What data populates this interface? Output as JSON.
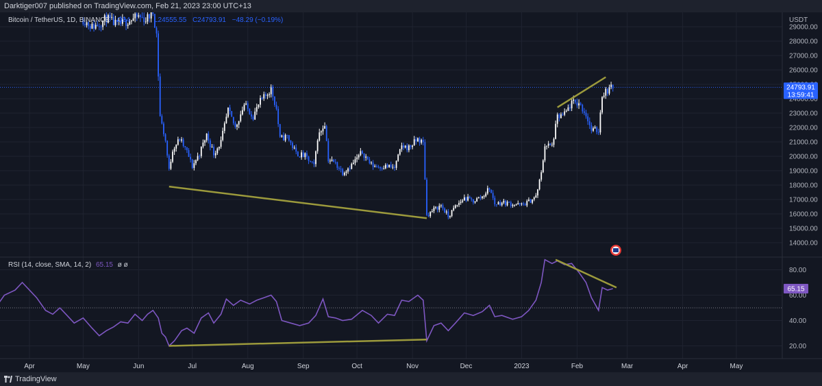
{
  "header": {
    "published": "Darktiger007 published on TradingView.com, Feb 21, 2023 23:00 UTC+13"
  },
  "footer": {
    "brand": "TradingView",
    "logo_icon": "tradingview-logo-icon"
  },
  "colors": {
    "bg": "#131722",
    "grid": "#1f2330",
    "up": "#ffffff",
    "down": "#2962ff",
    "trendline": "#9c9a3c",
    "rsi": "#7e57c2",
    "price_tag": "#2962ff",
    "rsi_tag": "#7e57c2",
    "axis_text": "#b2b5be"
  },
  "chart_data": [
    {
      "type": "candlestick",
      "symbol": "Bitcoin / TetherUS, 1D, BINANCE",
      "ohlc_label": "O24",
      "low_label": "L24555.55",
      "close_label": "C24793.91",
      "change_label": "−48.29 (−0.19%)",
      "currency": "USDT",
      "ylim": [
        13000,
        30000
      ],
      "y_ticks": [
        14000,
        15000,
        16000,
        17000,
        18000,
        19000,
        20000,
        21000,
        22000,
        23000,
        24000,
        25000,
        26000,
        27000,
        28000,
        29000
      ],
      "y_tick_labels": [
        "14000.00",
        "15000.00",
        "16000.00",
        "17000.00",
        "18000.00",
        "19000.00",
        "20000.00",
        "21000.00",
        "22000.00",
        "23000.00",
        "24000.00",
        "25000.00",
        "26000.00",
        "27000.00",
        "28000.00",
        "29000.00"
      ],
      "x_ticks": [
        "2022-04-01",
        "2022-05-01",
        "2022-06-01",
        "2022-07-01",
        "2022-08-01",
        "2022-09-01",
        "2022-10-01",
        "2022-11-01",
        "2022-12-01",
        "2023-01-01",
        "2023-02-01",
        "2023-03-01",
        "2023-04-01",
        "2023-05-01"
      ],
      "x_tick_labels": [
        "Apr",
        "May",
        "Jun",
        "Jul",
        "Aug",
        "Sep",
        "Oct",
        "Nov",
        "Dec",
        "2023",
        "Feb",
        "Mar",
        "Apr",
        "May"
      ],
      "last_price": 24793.91,
      "last_price_label": "24793.91",
      "countdown_label": "13:59:41",
      "close_series": [
        [
          "2022-05-01",
          29500
        ],
        [
          "2022-05-06",
          29000
        ],
        [
          "2022-05-10",
          29200
        ],
        [
          "2022-05-14",
          29600
        ],
        [
          "2022-05-20",
          29100
        ],
        [
          "2022-05-26",
          29400
        ],
        [
          "2022-06-01",
          29700
        ],
        [
          "2022-06-05",
          29500
        ],
        [
          "2022-06-09",
          30000
        ],
        [
          "2022-06-11",
          28500
        ],
        [
          "2022-06-13",
          22800
        ],
        [
          "2022-06-14",
          22200
        ],
        [
          "2022-06-16",
          21100
        ],
        [
          "2022-06-18",
          19000
        ],
        [
          "2022-06-20",
          20500
        ],
        [
          "2022-06-24",
          21200
        ],
        [
          "2022-06-28",
          20300
        ],
        [
          "2022-07-01",
          19300
        ],
        [
          "2022-07-05",
          20200
        ],
        [
          "2022-07-09",
          21500
        ],
        [
          "2022-07-13",
          20200
        ],
        [
          "2022-07-17",
          21000
        ],
        [
          "2022-07-21",
          23200
        ],
        [
          "2022-07-25",
          22000
        ],
        [
          "2022-07-30",
          23600
        ],
        [
          "2022-08-04",
          22800
        ],
        [
          "2022-08-08",
          23800
        ],
        [
          "2022-08-11",
          24200
        ],
        [
          "2022-08-14",
          24700
        ],
        [
          "2022-08-17",
          23300
        ],
        [
          "2022-08-19",
          21200
        ],
        [
          "2022-08-23",
          21400
        ],
        [
          "2022-08-28",
          20200
        ],
        [
          "2022-09-02",
          20000
        ],
        [
          "2022-09-07",
          19300
        ],
        [
          "2022-09-09",
          21300
        ],
        [
          "2022-09-13",
          22300
        ],
        [
          "2022-09-15",
          19800
        ],
        [
          "2022-09-19",
          19500
        ],
        [
          "2022-09-23",
          18900
        ],
        [
          "2022-09-28",
          19400
        ],
        [
          "2022-10-04",
          20300
        ],
        [
          "2022-10-09",
          19400
        ],
        [
          "2022-10-13",
          19300
        ],
        [
          "2022-10-18",
          19300
        ],
        [
          "2022-10-22",
          19200
        ],
        [
          "2022-10-26",
          20700
        ],
        [
          "2022-10-30",
          20600
        ],
        [
          "2022-11-04",
          21200
        ],
        [
          "2022-11-07",
          20900
        ],
        [
          "2022-11-08",
          18500
        ],
        [
          "2022-11-09",
          15900
        ],
        [
          "2022-11-13",
          16300
        ],
        [
          "2022-11-17",
          16600
        ],
        [
          "2022-11-21",
          15800
        ],
        [
          "2022-11-25",
          16500
        ],
        [
          "2022-11-30",
          17100
        ],
        [
          "2022-12-05",
          16900
        ],
        [
          "2022-12-10",
          17200
        ],
        [
          "2022-12-14",
          17800
        ],
        [
          "2022-12-17",
          16700
        ],
        [
          "2022-12-21",
          16800
        ],
        [
          "2022-12-27",
          16700
        ],
        [
          "2023-01-01",
          16600
        ],
        [
          "2023-01-05",
          16850
        ],
        [
          "2023-01-09",
          17200
        ],
        [
          "2023-01-12",
          18800
        ],
        [
          "2023-01-14",
          20800
        ],
        [
          "2023-01-18",
          20700
        ],
        [
          "2023-01-21",
          22700
        ],
        [
          "2023-01-25",
          22900
        ],
        [
          "2023-01-29",
          23700
        ],
        [
          "2023-02-02",
          23700
        ],
        [
          "2023-02-06",
          22900
        ],
        [
          "2023-02-09",
          21800
        ],
        [
          "2023-02-13",
          21800
        ],
        [
          "2023-02-15",
          24300
        ],
        [
          "2023-02-18",
          24600
        ],
        [
          "2023-02-21",
          24800
        ]
      ],
      "trendlines": [
        {
          "from": [
            "2022-06-18",
            17900
          ],
          "to": [
            "2022-11-09",
            15700
          ]
        },
        {
          "from": [
            "2023-01-21",
            23400
          ],
          "to": [
            "2023-02-17",
            25500
          ]
        }
      ],
      "currency_flag_icon": "us-flag-icon"
    },
    {
      "type": "line",
      "indicator_label": "RSI (14, close, SMA, 14, 2)",
      "value_label": "65.15",
      "extra_label": "ø ø",
      "ylim": [
        10,
        90
      ],
      "y_ticks": [
        20,
        40,
        60,
        80
      ],
      "y_tick_labels": [
        "20.00",
        "40.00",
        "60.00",
        "80.00"
      ],
      "reference_level": 50,
      "last_value": 65.15,
      "last_value_label": "65.15",
      "series": [
        [
          "2022-03-10",
          55
        ],
        [
          "2022-03-14",
          52
        ],
        [
          "2022-03-18",
          60
        ],
        [
          "2022-03-24",
          64
        ],
        [
          "2022-03-28",
          70
        ],
        [
          "2022-04-01",
          64
        ],
        [
          "2022-04-05",
          58
        ],
        [
          "2022-04-10",
          48
        ],
        [
          "2022-04-14",
          45
        ],
        [
          "2022-04-18",
          50
        ],
        [
          "2022-04-22",
          44
        ],
        [
          "2022-04-26",
          38
        ],
        [
          "2022-05-01",
          42
        ],
        [
          "2022-05-06",
          34
        ],
        [
          "2022-05-10",
          28
        ],
        [
          "2022-05-14",
          32
        ],
        [
          "2022-05-18",
          35
        ],
        [
          "2022-05-22",
          39
        ],
        [
          "2022-05-26",
          38
        ],
        [
          "2022-05-30",
          45
        ],
        [
          "2022-06-03",
          40
        ],
        [
          "2022-06-06",
          45
        ],
        [
          "2022-06-09",
          48
        ],
        [
          "2022-06-12",
          42
        ],
        [
          "2022-06-14",
          30
        ],
        [
          "2022-06-16",
          27
        ],
        [
          "2022-06-18",
          20
        ],
        [
          "2022-06-21",
          24
        ],
        [
          "2022-06-25",
          32
        ],
        [
          "2022-06-28",
          34
        ],
        [
          "2022-07-02",
          30
        ],
        [
          "2022-07-06",
          42
        ],
        [
          "2022-07-10",
          46
        ],
        [
          "2022-07-13",
          38
        ],
        [
          "2022-07-17",
          45
        ],
        [
          "2022-07-20",
          57
        ],
        [
          "2022-07-24",
          52
        ],
        [
          "2022-07-28",
          56
        ],
        [
          "2022-08-02",
          53
        ],
        [
          "2022-08-06",
          56
        ],
        [
          "2022-08-10",
          58
        ],
        [
          "2022-08-14",
          60
        ],
        [
          "2022-08-17",
          55
        ],
        [
          "2022-08-20",
          40
        ],
        [
          "2022-08-25",
          38
        ],
        [
          "2022-08-30",
          36
        ],
        [
          "2022-09-04",
          38
        ],
        [
          "2022-09-08",
          44
        ],
        [
          "2022-09-12",
          57
        ],
        [
          "2022-09-15",
          43
        ],
        [
          "2022-09-19",
          42
        ],
        [
          "2022-09-23",
          40
        ],
        [
          "2022-09-28",
          41
        ],
        [
          "2022-10-04",
          48
        ],
        [
          "2022-10-09",
          44
        ],
        [
          "2022-10-13",
          38
        ],
        [
          "2022-10-18",
          45
        ],
        [
          "2022-10-22",
          44
        ],
        [
          "2022-10-26",
          56
        ],
        [
          "2022-10-30",
          55
        ],
        [
          "2022-11-04",
          60
        ],
        [
          "2022-11-07",
          56
        ],
        [
          "2022-11-08",
          40
        ],
        [
          "2022-11-09",
          24
        ],
        [
          "2022-11-13",
          36
        ],
        [
          "2022-11-17",
          38
        ],
        [
          "2022-11-21",
          32
        ],
        [
          "2022-11-25",
          38
        ],
        [
          "2022-11-30",
          46
        ],
        [
          "2022-12-05",
          44
        ],
        [
          "2022-12-10",
          47
        ],
        [
          "2022-12-14",
          52
        ],
        [
          "2022-12-17",
          43
        ],
        [
          "2022-12-21",
          44
        ],
        [
          "2022-12-27",
          41
        ],
        [
          "2023-01-01",
          43
        ],
        [
          "2023-01-05",
          48
        ],
        [
          "2023-01-09",
          56
        ],
        [
          "2023-01-12",
          70
        ],
        [
          "2023-01-14",
          88
        ],
        [
          "2023-01-18",
          85
        ],
        [
          "2023-01-21",
          87
        ],
        [
          "2023-01-25",
          84
        ],
        [
          "2023-01-29",
          85
        ],
        [
          "2023-02-02",
          78
        ],
        [
          "2023-02-06",
          70
        ],
        [
          "2023-02-09",
          58
        ],
        [
          "2023-02-13",
          48
        ],
        [
          "2023-02-15",
          66
        ],
        [
          "2023-02-18",
          64
        ],
        [
          "2023-02-21",
          65.15
        ]
      ],
      "trendlines": [
        {
          "from": [
            "2022-06-18",
            20
          ],
          "to": [
            "2022-11-09",
            25
          ]
        },
        {
          "from": [
            "2023-01-20",
            88
          ],
          "to": [
            "2023-02-23",
            66
          ]
        }
      ]
    }
  ]
}
